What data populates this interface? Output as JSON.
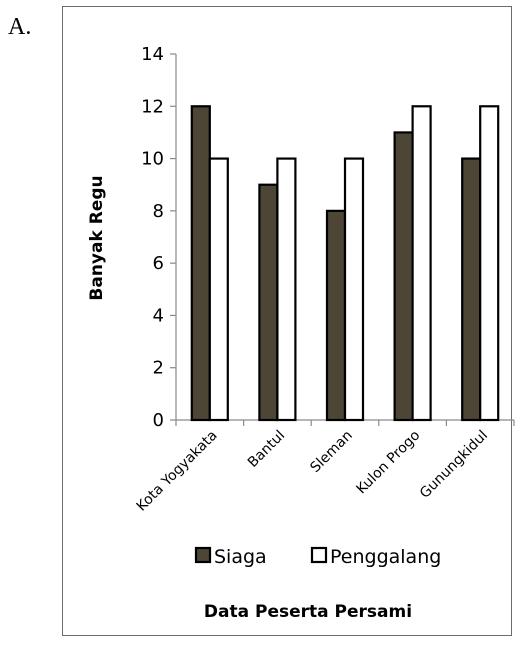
{
  "option_label": "A.",
  "chart_data": {
    "type": "bar",
    "categories": [
      "Kota Yogyakata",
      "Bantul",
      "Sleman",
      "Kulon Progo",
      "Gunungkidul"
    ],
    "series": [
      {
        "name": "Siaga",
        "values": [
          12,
          9,
          8,
          11,
          10
        ],
        "color": "#4d4636"
      },
      {
        "name": "Penggalang",
        "values": [
          10,
          10,
          10,
          12,
          12
        ],
        "color": "#ffffff"
      }
    ],
    "ylim": [
      0,
      14
    ],
    "yticks": [
      "0",
      "2",
      "4",
      "6",
      "8",
      "10",
      "12",
      "14"
    ],
    "ylabel": "Banyak Regu",
    "xlabel": "Data Peserta Persami",
    "legend_position": "bottom",
    "grid": false
  }
}
